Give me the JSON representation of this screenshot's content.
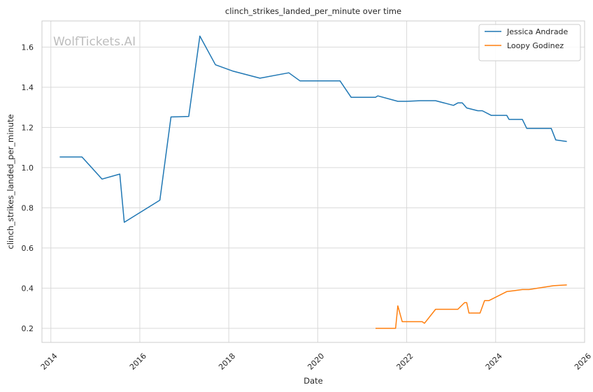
{
  "chart_data": {
    "type": "line",
    "title": "clinch_strikes_landed_per_minute over time",
    "xlabel": "Date",
    "ylabel": "clinch_strikes_landed_per_minute",
    "watermark": "WolfTickets.AI",
    "xlim": [
      2013.8,
      2026.0
    ],
    "ylim": [
      0.13,
      1.73
    ],
    "x_ticks": [
      2014,
      2016,
      2018,
      2020,
      2022,
      2024,
      2026
    ],
    "x_tick_labels": [
      "2014",
      "2016",
      "2018",
      "2020",
      "2022",
      "2024",
      "2026"
    ],
    "y_ticks": [
      0.2,
      0.4,
      0.6,
      0.8,
      1.0,
      1.2,
      1.4,
      1.6
    ],
    "y_tick_labels": [
      "0.2",
      "0.4",
      "0.6",
      "0.8",
      "1.0",
      "1.2",
      "1.4",
      "1.6"
    ],
    "grid": true,
    "legend_position": "top-right",
    "series": [
      {
        "name": "Jessica Andrade",
        "color": "#1f77b4",
        "points": [
          [
            2014.2,
            1.053
          ],
          [
            2014.7,
            1.053
          ],
          [
            2015.15,
            0.943
          ],
          [
            2015.55,
            0.968
          ],
          [
            2015.65,
            0.728
          ],
          [
            2016.45,
            0.838
          ],
          [
            2016.7,
            1.252
          ],
          [
            2017.1,
            1.255
          ],
          [
            2017.35,
            1.655
          ],
          [
            2017.7,
            1.512
          ],
          [
            2018.1,
            1.48
          ],
          [
            2018.7,
            1.445
          ],
          [
            2019.35,
            1.472
          ],
          [
            2019.6,
            1.432
          ],
          [
            2020.5,
            1.432
          ],
          [
            2020.75,
            1.35
          ],
          [
            2021.3,
            1.35
          ],
          [
            2021.35,
            1.357
          ],
          [
            2021.8,
            1.33
          ],
          [
            2022.0,
            1.33
          ],
          [
            2022.3,
            1.333
          ],
          [
            2022.65,
            1.333
          ],
          [
            2023.05,
            1.31
          ],
          [
            2023.15,
            1.322
          ],
          [
            2023.25,
            1.322
          ],
          [
            2023.35,
            1.297
          ],
          [
            2023.6,
            1.283
          ],
          [
            2023.7,
            1.283
          ],
          [
            2023.9,
            1.26
          ],
          [
            2024.25,
            1.26
          ],
          [
            2024.3,
            1.24
          ],
          [
            2024.6,
            1.24
          ],
          [
            2024.7,
            1.195
          ],
          [
            2025.25,
            1.195
          ],
          [
            2025.35,
            1.138
          ],
          [
            2025.6,
            1.13
          ]
        ]
      },
      {
        "name": "Loopy Godinez",
        "color": "#ff7f0e",
        "points": [
          [
            2021.3,
            0.2
          ],
          [
            2021.75,
            0.2
          ],
          [
            2021.8,
            0.312
          ],
          [
            2021.9,
            0.233
          ],
          [
            2022.35,
            0.233
          ],
          [
            2022.4,
            0.225
          ],
          [
            2022.65,
            0.295
          ],
          [
            2023.15,
            0.295
          ],
          [
            2023.3,
            0.328
          ],
          [
            2023.35,
            0.328
          ],
          [
            2023.4,
            0.276
          ],
          [
            2023.65,
            0.276
          ],
          [
            2023.75,
            0.338
          ],
          [
            2023.85,
            0.338
          ],
          [
            2024.25,
            0.383
          ],
          [
            2024.4,
            0.387
          ],
          [
            2024.6,
            0.393
          ],
          [
            2024.75,
            0.393
          ],
          [
            2025.3,
            0.412
          ],
          [
            2025.6,
            0.416
          ]
        ]
      }
    ]
  }
}
